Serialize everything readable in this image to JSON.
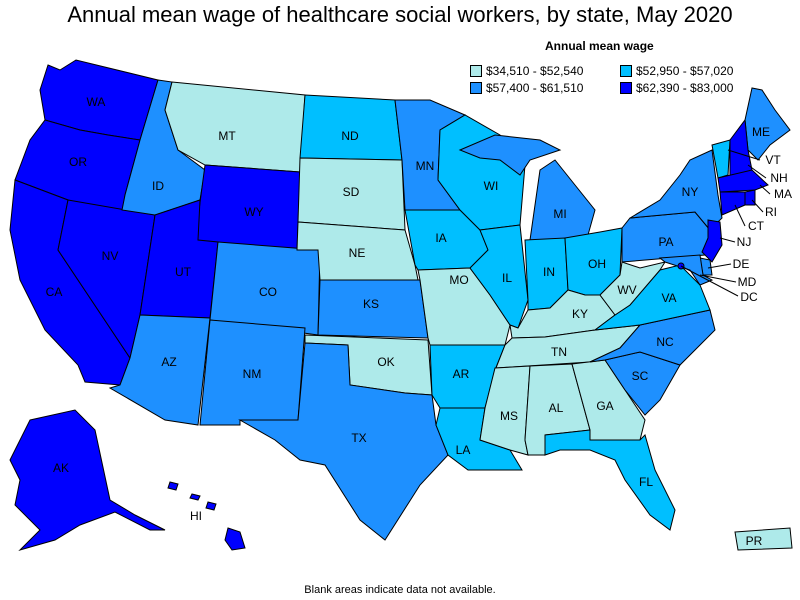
{
  "title": "Annual mean wage of healthcare social workers, by state, May 2020",
  "legend": {
    "title": "Annual mean wage",
    "items": [
      {
        "label": "$34,510 - $52,540",
        "color": "#aeeaea"
      },
      {
        "label": "$52,950 - $57,020",
        "color": "#00bfff"
      },
      {
        "label": "$57,400 - $61,510",
        "color": "#1e90ff"
      },
      {
        "label": "$62,390 - $83,000",
        "color": "#0000ff"
      }
    ]
  },
  "footer": "Blank areas indicate data not available.",
  "states": {
    "WA": {
      "label": "WA",
      "tier": 3
    },
    "OR": {
      "label": "OR",
      "tier": 3
    },
    "CA": {
      "label": "CA",
      "tier": 3
    },
    "NV": {
      "label": "NV",
      "tier": 3
    },
    "ID": {
      "label": "ID",
      "tier": 2
    },
    "MT": {
      "label": "MT",
      "tier": 0
    },
    "WY": {
      "label": "WY",
      "tier": 3
    },
    "UT": {
      "label": "UT",
      "tier": 3
    },
    "AZ": {
      "label": "AZ",
      "tier": 2
    },
    "CO": {
      "label": "CO",
      "tier": 2
    },
    "NM": {
      "label": "NM",
      "tier": 2
    },
    "ND": {
      "label": "ND",
      "tier": 1
    },
    "SD": {
      "label": "SD",
      "tier": 0
    },
    "NE": {
      "label": "NE",
      "tier": 0
    },
    "KS": {
      "label": "KS",
      "tier": 2
    },
    "OK": {
      "label": "OK",
      "tier": 0
    },
    "TX": {
      "label": "TX",
      "tier": 2
    },
    "MN": {
      "label": "MN",
      "tier": 2
    },
    "IA": {
      "label": "IA",
      "tier": 1
    },
    "MO": {
      "label": "MO",
      "tier": 0
    },
    "AR": {
      "label": "AR",
      "tier": 1
    },
    "LA": {
      "label": "LA",
      "tier": 1
    },
    "WI": {
      "label": "WI",
      "tier": 1
    },
    "IL": {
      "label": "IL",
      "tier": 1
    },
    "MI": {
      "label": "MI",
      "tier": 2
    },
    "IN": {
      "label": "IN",
      "tier": 1
    },
    "OH": {
      "label": "OH",
      "tier": 1
    },
    "KY": {
      "label": "KY",
      "tier": 0
    },
    "TN": {
      "label": "TN",
      "tier": 0
    },
    "MS": {
      "label": "MS",
      "tier": 0
    },
    "AL": {
      "label": "AL",
      "tier": 0
    },
    "GA": {
      "label": "GA",
      "tier": 0
    },
    "FL": {
      "label": "FL",
      "tier": 1
    },
    "SC": {
      "label": "SC",
      "tier": 2
    },
    "NC": {
      "label": "NC",
      "tier": 2
    },
    "VA": {
      "label": "VA",
      "tier": 1
    },
    "WV": {
      "label": "WV",
      "tier": 0
    },
    "PA": {
      "label": "PA",
      "tier": 2
    },
    "NY": {
      "label": "NY",
      "tier": 2
    },
    "ME": {
      "label": "ME",
      "tier": 2
    },
    "VT": {
      "label": "VT",
      "tier": 1
    },
    "NH": {
      "label": "NH",
      "tier": 3
    },
    "MA": {
      "label": "MA",
      "tier": 3
    },
    "RI": {
      "label": "RI",
      "tier": 3
    },
    "CT": {
      "label": "CT",
      "tier": 3
    },
    "NJ": {
      "label": "NJ",
      "tier": 3
    },
    "DE": {
      "label": "DE",
      "tier": 2
    },
    "MD": {
      "label": "MD",
      "tier": 2
    },
    "DC": {
      "label": "DC",
      "tier": 3
    },
    "AK": {
      "label": "AK",
      "tier": 3
    },
    "HI": {
      "label": "HI",
      "tier": 3
    },
    "PR": {
      "label": "PR",
      "tier": 0
    }
  }
}
